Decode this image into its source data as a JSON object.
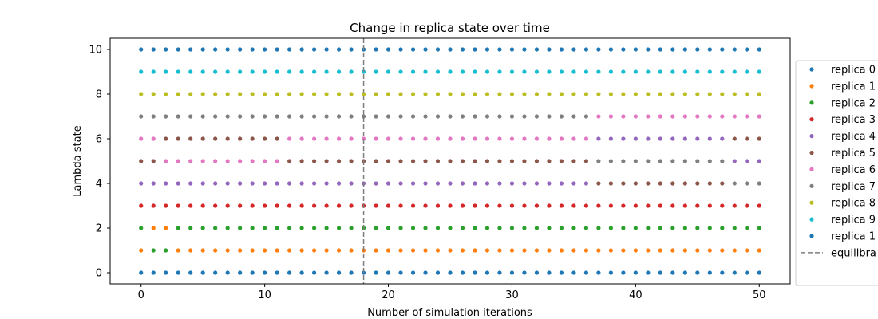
{
  "chart_data": {
    "type": "scatter",
    "title": "Change in replica state over time",
    "xlabel": "Number of simulation iterations",
    "ylabel": "Lambda state",
    "xlim": [
      -2.5,
      52.5
    ],
    "ylim": [
      -0.5,
      10.5
    ],
    "xticks": [
      0,
      10,
      20,
      30,
      40,
      50
    ],
    "yticks": [
      0,
      2,
      4,
      6,
      8,
      10
    ],
    "x": [
      0,
      1,
      2,
      3,
      4,
      5,
      6,
      7,
      8,
      9,
      10,
      11,
      12,
      13,
      14,
      15,
      16,
      17,
      18,
      19,
      20,
      21,
      22,
      23,
      24,
      25,
      26,
      27,
      28,
      29,
      30,
      31,
      32,
      33,
      34,
      35,
      36,
      37,
      38,
      39,
      40,
      41,
      42,
      43,
      44,
      45,
      46,
      47,
      48,
      49,
      50
    ],
    "grid": false,
    "legend_position": "right, outside the plot",
    "series": [
      {
        "name": "replica 0",
        "color": "#1f77b4",
        "values": [
          0,
          0,
          0,
          0,
          0,
          0,
          0,
          0,
          0,
          0,
          0,
          0,
          0,
          0,
          0,
          0,
          0,
          0,
          0,
          0,
          0,
          0,
          0,
          0,
          0,
          0,
          0,
          0,
          0,
          0,
          0,
          0,
          0,
          0,
          0,
          0,
          0,
          0,
          0,
          0,
          0,
          0,
          0,
          0,
          0,
          0,
          0,
          0,
          0,
          0,
          0
        ]
      },
      {
        "name": "replica 1",
        "color": "#ff7f0e",
        "values": [
          1,
          2,
          2,
          1,
          1,
          1,
          1,
          1,
          1,
          1,
          1,
          1,
          1,
          1,
          1,
          1,
          1,
          1,
          1,
          1,
          1,
          1,
          1,
          1,
          1,
          1,
          1,
          1,
          1,
          1,
          1,
          1,
          1,
          1,
          1,
          1,
          1,
          1,
          1,
          1,
          1,
          1,
          1,
          1,
          1,
          1,
          1,
          1,
          1,
          1,
          1
        ]
      },
      {
        "name": "replica 2",
        "color": "#2ca02c",
        "values": [
          2,
          1,
          1,
          2,
          2,
          2,
          2,
          2,
          2,
          2,
          2,
          2,
          2,
          2,
          2,
          2,
          2,
          2,
          2,
          2,
          2,
          2,
          2,
          2,
          2,
          2,
          2,
          2,
          2,
          2,
          2,
          2,
          2,
          2,
          2,
          2,
          2,
          2,
          2,
          2,
          2,
          2,
          2,
          2,
          2,
          2,
          2,
          2,
          2,
          2,
          2
        ]
      },
      {
        "name": "replica 3",
        "color": "#d62728",
        "values": [
          3,
          3,
          3,
          3,
          3,
          3,
          3,
          3,
          3,
          3,
          3,
          3,
          3,
          3,
          3,
          3,
          3,
          3,
          3,
          3,
          3,
          3,
          3,
          3,
          3,
          3,
          3,
          3,
          3,
          3,
          3,
          3,
          3,
          3,
          3,
          3,
          3,
          3,
          3,
          3,
          3,
          3,
          3,
          3,
          3,
          3,
          3,
          3,
          3,
          3,
          3
        ]
      },
      {
        "name": "replica 4",
        "color": "#9467bd",
        "values": [
          4,
          4,
          4,
          4,
          4,
          4,
          4,
          4,
          4,
          4,
          4,
          4,
          4,
          4,
          4,
          4,
          4,
          4,
          4,
          4,
          4,
          4,
          4,
          4,
          4,
          4,
          4,
          4,
          4,
          4,
          4,
          4,
          4,
          4,
          4,
          4,
          4,
          6,
          6,
          6,
          6,
          6,
          6,
          6,
          6,
          6,
          6,
          6,
          5,
          5,
          5
        ]
      },
      {
        "name": "replica 5",
        "color": "#8c564b",
        "values": [
          5,
          5,
          6,
          6,
          6,
          6,
          6,
          6,
          6,
          6,
          6,
          6,
          5,
          5,
          5,
          5,
          5,
          5,
          5,
          5,
          5,
          5,
          5,
          5,
          5,
          5,
          5,
          5,
          5,
          5,
          5,
          5,
          5,
          5,
          5,
          5,
          5,
          4,
          4,
          4,
          4,
          4,
          4,
          4,
          4,
          4,
          4,
          4,
          6,
          6,
          6
        ]
      },
      {
        "name": "replica 6",
        "color": "#e377c2",
        "values": [
          6,
          6,
          5,
          5,
          5,
          5,
          5,
          5,
          5,
          5,
          5,
          5,
          6,
          6,
          6,
          6,
          6,
          6,
          6,
          6,
          6,
          6,
          6,
          6,
          6,
          6,
          6,
          6,
          6,
          6,
          6,
          6,
          6,
          6,
          6,
          6,
          6,
          7,
          7,
          7,
          7,
          7,
          7,
          7,
          7,
          7,
          7,
          7,
          7,
          7,
          7
        ]
      },
      {
        "name": "replica 7",
        "color": "#7f7f7f",
        "values": [
          7,
          7,
          7,
          7,
          7,
          7,
          7,
          7,
          7,
          7,
          7,
          7,
          7,
          7,
          7,
          7,
          7,
          7,
          7,
          7,
          7,
          7,
          7,
          7,
          7,
          7,
          7,
          7,
          7,
          7,
          7,
          7,
          7,
          7,
          7,
          7,
          7,
          5,
          5,
          5,
          5,
          5,
          5,
          5,
          5,
          5,
          5,
          5,
          4,
          4,
          4
        ]
      },
      {
        "name": "replica 8",
        "color": "#bcbd22",
        "values": [
          8,
          8,
          8,
          8,
          8,
          8,
          8,
          8,
          8,
          8,
          8,
          8,
          8,
          8,
          8,
          8,
          8,
          8,
          8,
          8,
          8,
          8,
          8,
          8,
          8,
          8,
          8,
          8,
          8,
          8,
          8,
          8,
          8,
          8,
          8,
          8,
          8,
          8,
          8,
          8,
          8,
          8,
          8,
          8,
          8,
          8,
          8,
          8,
          8,
          8,
          8
        ]
      },
      {
        "name": "replica 9",
        "color": "#17becf",
        "values": [
          9,
          9,
          9,
          9,
          9,
          9,
          9,
          9,
          9,
          9,
          9,
          9,
          9,
          9,
          9,
          9,
          9,
          9,
          9,
          9,
          9,
          9,
          9,
          9,
          9,
          9,
          9,
          9,
          9,
          9,
          9,
          9,
          9,
          9,
          9,
          9,
          9,
          9,
          9,
          9,
          9,
          9,
          9,
          9,
          9,
          9,
          9,
          9,
          9,
          9,
          9
        ]
      },
      {
        "name": "replica 1",
        "color": "#1f77b4",
        "values": [
          10,
          10,
          10,
          10,
          10,
          10,
          10,
          10,
          10,
          10,
          10,
          10,
          10,
          10,
          10,
          10,
          10,
          10,
          10,
          10,
          10,
          10,
          10,
          10,
          10,
          10,
          10,
          10,
          10,
          10,
          10,
          10,
          10,
          10,
          10,
          10,
          10,
          10,
          10,
          10,
          10,
          10,
          10,
          10,
          10,
          10,
          10,
          10,
          10,
          10,
          10
        ]
      }
    ],
    "vline": {
      "x": 18,
      "label": "equilibra",
      "color": "#7f7f7f",
      "style": "dashed"
    }
  }
}
